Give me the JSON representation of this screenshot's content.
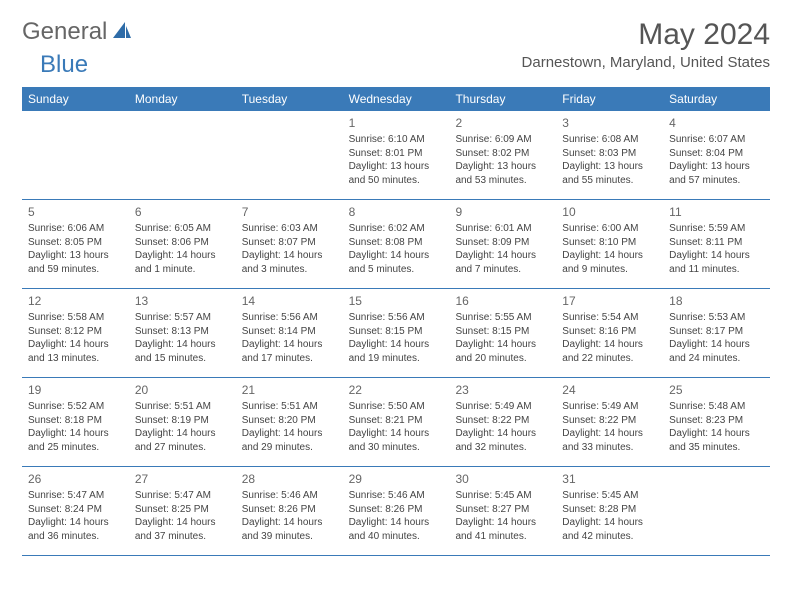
{
  "logo": {
    "general": "General",
    "blue": "Blue"
  },
  "title": "May 2024",
  "location": "Darnestown, Maryland, United States",
  "colors": {
    "header_bg": "#3a7ab8",
    "header_text": "#ffffff",
    "border": "#3a7ab8",
    "text": "#444444",
    "title_text": "#555555"
  },
  "dayNames": [
    "Sunday",
    "Monday",
    "Tuesday",
    "Wednesday",
    "Thursday",
    "Friday",
    "Saturday"
  ],
  "weeks": [
    [
      null,
      null,
      null,
      {
        "n": "1",
        "sr": "6:10 AM",
        "ss": "8:01 PM",
        "dl": "13 hours and 50 minutes."
      },
      {
        "n": "2",
        "sr": "6:09 AM",
        "ss": "8:02 PM",
        "dl": "13 hours and 53 minutes."
      },
      {
        "n": "3",
        "sr": "6:08 AM",
        "ss": "8:03 PM",
        "dl": "13 hours and 55 minutes."
      },
      {
        "n": "4",
        "sr": "6:07 AM",
        "ss": "8:04 PM",
        "dl": "13 hours and 57 minutes."
      }
    ],
    [
      {
        "n": "5",
        "sr": "6:06 AM",
        "ss": "8:05 PM",
        "dl": "13 hours and 59 minutes."
      },
      {
        "n": "6",
        "sr": "6:05 AM",
        "ss": "8:06 PM",
        "dl": "14 hours and 1 minute."
      },
      {
        "n": "7",
        "sr": "6:03 AM",
        "ss": "8:07 PM",
        "dl": "14 hours and 3 minutes."
      },
      {
        "n": "8",
        "sr": "6:02 AM",
        "ss": "8:08 PM",
        "dl": "14 hours and 5 minutes."
      },
      {
        "n": "9",
        "sr": "6:01 AM",
        "ss": "8:09 PM",
        "dl": "14 hours and 7 minutes."
      },
      {
        "n": "10",
        "sr": "6:00 AM",
        "ss": "8:10 PM",
        "dl": "14 hours and 9 minutes."
      },
      {
        "n": "11",
        "sr": "5:59 AM",
        "ss": "8:11 PM",
        "dl": "14 hours and 11 minutes."
      }
    ],
    [
      {
        "n": "12",
        "sr": "5:58 AM",
        "ss": "8:12 PM",
        "dl": "14 hours and 13 minutes."
      },
      {
        "n": "13",
        "sr": "5:57 AM",
        "ss": "8:13 PM",
        "dl": "14 hours and 15 minutes."
      },
      {
        "n": "14",
        "sr": "5:56 AM",
        "ss": "8:14 PM",
        "dl": "14 hours and 17 minutes."
      },
      {
        "n": "15",
        "sr": "5:56 AM",
        "ss": "8:15 PM",
        "dl": "14 hours and 19 minutes."
      },
      {
        "n": "16",
        "sr": "5:55 AM",
        "ss": "8:15 PM",
        "dl": "14 hours and 20 minutes."
      },
      {
        "n": "17",
        "sr": "5:54 AM",
        "ss": "8:16 PM",
        "dl": "14 hours and 22 minutes."
      },
      {
        "n": "18",
        "sr": "5:53 AM",
        "ss": "8:17 PM",
        "dl": "14 hours and 24 minutes."
      }
    ],
    [
      {
        "n": "19",
        "sr": "5:52 AM",
        "ss": "8:18 PM",
        "dl": "14 hours and 25 minutes."
      },
      {
        "n": "20",
        "sr": "5:51 AM",
        "ss": "8:19 PM",
        "dl": "14 hours and 27 minutes."
      },
      {
        "n": "21",
        "sr": "5:51 AM",
        "ss": "8:20 PM",
        "dl": "14 hours and 29 minutes."
      },
      {
        "n": "22",
        "sr": "5:50 AM",
        "ss": "8:21 PM",
        "dl": "14 hours and 30 minutes."
      },
      {
        "n": "23",
        "sr": "5:49 AM",
        "ss": "8:22 PM",
        "dl": "14 hours and 32 minutes."
      },
      {
        "n": "24",
        "sr": "5:49 AM",
        "ss": "8:22 PM",
        "dl": "14 hours and 33 minutes."
      },
      {
        "n": "25",
        "sr": "5:48 AM",
        "ss": "8:23 PM",
        "dl": "14 hours and 35 minutes."
      }
    ],
    [
      {
        "n": "26",
        "sr": "5:47 AM",
        "ss": "8:24 PM",
        "dl": "14 hours and 36 minutes."
      },
      {
        "n": "27",
        "sr": "5:47 AM",
        "ss": "8:25 PM",
        "dl": "14 hours and 37 minutes."
      },
      {
        "n": "28",
        "sr": "5:46 AM",
        "ss": "8:26 PM",
        "dl": "14 hours and 39 minutes."
      },
      {
        "n": "29",
        "sr": "5:46 AM",
        "ss": "8:26 PM",
        "dl": "14 hours and 40 minutes."
      },
      {
        "n": "30",
        "sr": "5:45 AM",
        "ss": "8:27 PM",
        "dl": "14 hours and 41 minutes."
      },
      {
        "n": "31",
        "sr": "5:45 AM",
        "ss": "8:28 PM",
        "dl": "14 hours and 42 minutes."
      },
      null
    ]
  ],
  "labels": {
    "sunrise": "Sunrise:",
    "sunset": "Sunset:",
    "daylight": "Daylight:"
  }
}
